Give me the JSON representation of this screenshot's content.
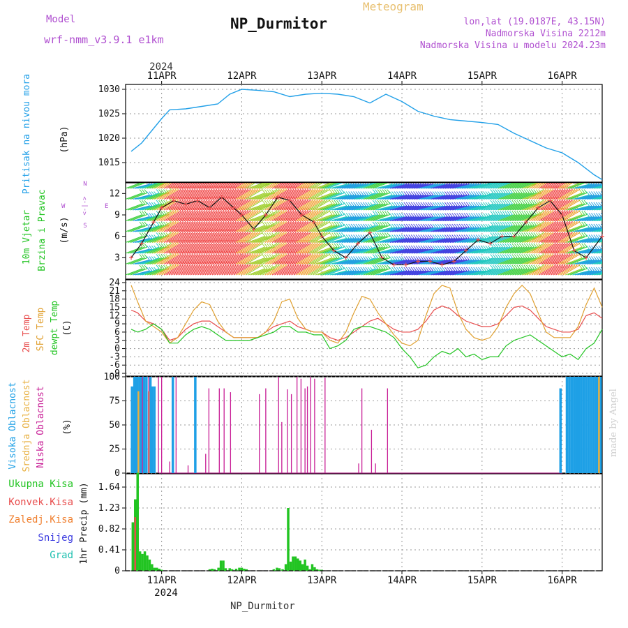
{
  "header": {
    "model_label": "Model",
    "model_name": "wrf-nmm_v3.9.1 e1km",
    "station_title": "NP_Durmitor",
    "meteogram_label": "Meteogram",
    "lonlat": "lon,lat (19.0187E, 43.15N)",
    "elevation": "Nadmorska Visina 2212m",
    "elevation_model": "Nadmorska Visina u modelu 2024.23m",
    "watermark": "made by Angel",
    "footer_station": "NP_Durmitor"
  },
  "x_axis": {
    "year": "2024",
    "date_labels": [
      "11APR",
      "12APR",
      "13APR",
      "14APR",
      "15APR",
      "16APR"
    ]
  },
  "panels": {
    "pressure": {
      "label": "Pritisak na nivou mora",
      "unit": "(hPa)",
      "ticks": [
        "1015",
        "1020",
        "1025",
        "1030"
      ]
    },
    "wind": {
      "label_1": "10m Vjetar",
      "label_2": "Brzina i Pravac",
      "unit": "(m/s)",
      "ticks": [
        "3",
        "6",
        "9",
        "12"
      ],
      "compass_n": "N",
      "compass_w": "W",
      "compass_e": "E",
      "compass_s": "S",
      "compass_arrow": "<-|->"
    },
    "temp": {
      "label_1": "2m Temp",
      "label_2": "SFC Temp",
      "label_3": "dewpt Temp",
      "unit": "(C)",
      "ticks": [
        "-9",
        "-6",
        "-3",
        "0",
        "3",
        "6",
        "9",
        "12",
        "15",
        "18",
        "21",
        "24"
      ]
    },
    "cloud": {
      "label_1": "Visoka Oblacnost",
      "label_2": "Srednja Oblacnost",
      "label_3": "Niska Oblacnost",
      "unit": "(%)",
      "ticks": [
        "0",
        "25",
        "50",
        "75",
        "100"
      ]
    },
    "precip": {
      "legend": [
        "Ukupna Kisa",
        "Konvek.Kisa",
        "Zaledj.Kisa",
        "Snijeg",
        "Grad"
      ],
      "unit": "1hr Precip (mm)",
      "ticks": [
        "0",
        "0.41",
        "0.82",
        "1.23",
        "1.64"
      ]
    }
  },
  "colors": {
    "pressure": "#22a0e8",
    "temp2m": "#e84c4c",
    "sfc": "#e0a030",
    "dewpt": "#22c422",
    "high_cloud": "#1ea0e6",
    "mid_cloud": "#e8b040",
    "low_cloud": "#c81e96",
    "precip_total": "#22c422",
    "precip_conv": "#e84c4c",
    "precip_frz": "#f08030",
    "snow": "#3c3ce0",
    "hail": "#20c0b0"
  },
  "chart_data": [
    {
      "type": "line",
      "title": "Pritisak na nivou mora",
      "ylabel": "(hPa)",
      "ylim": [
        1011,
        1031
      ],
      "x_days": [
        10.62,
        10.75,
        10.9,
        11.0,
        11.1,
        11.3,
        11.5,
        11.7,
        11.85,
        12.0,
        12.2,
        12.4,
        12.6,
        12.8,
        13.0,
        13.2,
        13.4,
        13.6,
        13.8,
        14.0,
        14.2,
        14.4,
        14.6,
        14.8,
        15.0,
        15.2,
        15.4,
        15.6,
        15.8,
        16.0,
        16.2,
        16.4,
        16.5
      ],
      "values": [
        1017.3,
        1019,
        1022,
        1024,
        1025.8,
        1026,
        1026.5,
        1027,
        1029,
        1030,
        1029.8,
        1029.5,
        1028.5,
        1029,
        1029.2,
        1029,
        1028.5,
        1027.2,
        1029,
        1027.5,
        1025.5,
        1024.5,
        1023.8,
        1023.5,
        1023.2,
        1022.8,
        1021,
        1019.5,
        1018,
        1017,
        1015,
        1012.5,
        1011.5
      ]
    },
    {
      "type": "line",
      "title": "10m Vjetar Brzina i Pravac",
      "ylabel": "(m/s)",
      "ylim": [
        0,
        13.5
      ],
      "x_days": [
        10.62,
        10.75,
        10.9,
        11.0,
        11.15,
        11.3,
        11.45,
        11.6,
        11.75,
        11.9,
        12.0,
        12.15,
        12.3,
        12.45,
        12.6,
        12.75,
        12.9,
        13.0,
        13.15,
        13.3,
        13.45,
        13.6,
        13.75,
        13.9,
        14.05,
        14.2,
        14.35,
        14.5,
        14.65,
        14.8,
        14.95,
        15.1,
        15.25,
        15.4,
        15.55,
        15.7,
        15.85,
        16.0,
        16.15,
        16.3,
        16.5
      ],
      "values": [
        3,
        5,
        8,
        10,
        11,
        10.5,
        11,
        10,
        11.5,
        10,
        9,
        7,
        9,
        11.5,
        11,
        9,
        8,
        6,
        4,
        3,
        5,
        6.5,
        3,
        2,
        2,
        2.5,
        2.5,
        2,
        2.5,
        4,
        5.5,
        5,
        6,
        6,
        8,
        10,
        11,
        9,
        4,
        3,
        6
      ],
      "compass": [
        "N",
        "W",
        "E",
        "S"
      ]
    },
    {
      "type": "line",
      "title": "2m Temp / SFC Temp / dewpt Temp",
      "ylabel": "(C)",
      "ylim": [
        -10,
        25
      ],
      "x_days": [
        10.62,
        10.7,
        10.8,
        10.9,
        11.0,
        11.1,
        11.2,
        11.3,
        11.4,
        11.5,
        11.6,
        11.7,
        11.8,
        11.9,
        12.0,
        12.1,
        12.2,
        12.3,
        12.4,
        12.5,
        12.6,
        12.7,
        12.8,
        12.9,
        13.0,
        13.1,
        13.2,
        13.3,
        13.4,
        13.5,
        13.6,
        13.7,
        13.8,
        13.9,
        14.0,
        14.1,
        14.2,
        14.3,
        14.4,
        14.5,
        14.6,
        14.7,
        14.8,
        14.9,
        15.0,
        15.1,
        15.2,
        15.3,
        15.4,
        15.5,
        15.6,
        15.7,
        15.8,
        15.9,
        16.0,
        16.1,
        16.2,
        16.3,
        16.4,
        16.5
      ],
      "series": [
        {
          "name": "2m Temp",
          "values": [
            14,
            13,
            10,
            9,
            7,
            3,
            4,
            7,
            9,
            10,
            10,
            8,
            6,
            4,
            4,
            4,
            4,
            6,
            8,
            9,
            10,
            8,
            7,
            6,
            6,
            4,
            3,
            4,
            6,
            8,
            10,
            11,
            9,
            7,
            6,
            6,
            7,
            10,
            14,
            15.5,
            14.5,
            12,
            10,
            9,
            8,
            8,
            9,
            12,
            15,
            15.5,
            14,
            11,
            8,
            7,
            6,
            6,
            7,
            12,
            13,
            11
          ]
        },
        {
          "name": "SFC Temp",
          "values": [
            23,
            17,
            10,
            8,
            6,
            2,
            4,
            9,
            14,
            17,
            16,
            10,
            6,
            4,
            4,
            4,
            4,
            6,
            10,
            17,
            18,
            11,
            7,
            6,
            6,
            3,
            2,
            6,
            13,
            19,
            18,
            13,
            9,
            5,
            2,
            1,
            3,
            12,
            20,
            23,
            22,
            13,
            7,
            4,
            3,
            4,
            8,
            15,
            20,
            23,
            20,
            13,
            6,
            4,
            4,
            4,
            8,
            16,
            22,
            15
          ]
        },
        {
          "name": "dewpt Temp",
          "values": [
            7,
            6,
            7,
            9,
            7,
            2,
            2,
            5,
            7,
            8,
            7,
            5,
            3,
            3,
            3,
            3,
            4,
            5,
            6,
            8,
            8,
            6,
            6,
            5,
            5,
            0,
            1,
            3,
            7,
            8,
            8,
            7,
            6,
            4,
            0,
            -3,
            -7,
            -6,
            -3,
            -1,
            -2,
            0,
            -3,
            -2,
            -4,
            -3,
            -3,
            1,
            3,
            4,
            5,
            3,
            1,
            -1,
            -3,
            -2,
            -4,
            0,
            2,
            7
          ]
        }
      ]
    },
    {
      "type": "bar",
      "title": "Oblacnost",
      "ylabel": "(%)",
      "ylim": [
        0,
        100
      ],
      "series": [
        {
          "name": "Visoka Oblacnost",
          "x_days": [
            10.63,
            10.66,
            10.68,
            10.7,
            10.73,
            10.75,
            10.78,
            10.81,
            10.86,
            10.88,
            10.91,
            11.14,
            11.42,
            15.98,
            16.06,
            16.09,
            16.12,
            16.15,
            16.18,
            16.21,
            16.24,
            16.27,
            16.3,
            16.33,
            16.36,
            16.39,
            16.42,
            16.45,
            16.48
          ],
          "values": [
            90,
            100,
            100,
            100,
            100,
            100,
            100,
            100,
            100,
            90,
            90,
            100,
            100,
            88,
            100,
            100,
            100,
            100,
            100,
            100,
            100,
            100,
            100,
            100,
            100,
            100,
            100,
            100,
            100
          ]
        },
        {
          "name": "Srednja Oblacnost",
          "x_days": [
            10.71,
            10.84,
            16.46
          ],
          "values": [
            85,
            85,
            100
          ]
        },
        {
          "name": "Niska Oblacnost",
          "x_days": [
            10.76,
            10.84,
            10.96,
            11.0,
            11.1,
            11.18,
            11.33,
            11.55,
            11.59,
            11.72,
            11.78,
            11.86,
            12.22,
            12.3,
            12.46,
            12.5,
            12.57,
            12.62,
            12.69,
            12.74,
            12.79,
            12.82,
            12.86,
            12.91,
            13.04,
            13.46,
            13.5,
            13.62,
            13.67,
            13.82
          ],
          "values": [
            100,
            100,
            100,
            100,
            12,
            100,
            8,
            20,
            88,
            88,
            88,
            84,
            82,
            88,
            100,
            53,
            87,
            82,
            100,
            98,
            88,
            90,
            100,
            98,
            99,
            10,
            88,
            45,
            10,
            88
          ]
        }
      ]
    },
    {
      "type": "bar",
      "title": "1hr Precip",
      "ylabel": "1hr Precip (mm)",
      "ylim": [
        0,
        1.9
      ],
      "series": [
        {
          "name": "Ukupna Kisa",
          "x_days": [
            10.64,
            10.67,
            10.7,
            10.73,
            10.76,
            10.79,
            10.82,
            10.85,
            10.88,
            10.91,
            10.94,
            10.97,
            11.0,
            11.6,
            11.63,
            11.66,
            11.71,
            11.74,
            11.77,
            11.8,
            11.85,
            11.88,
            11.93,
            11.97,
            12.0,
            12.03,
            12.06,
            12.4,
            12.44,
            12.47,
            12.51,
            12.55,
            12.58,
            12.61,
            12.64,
            12.67,
            12.7,
            12.73,
            12.76,
            12.79,
            12.82,
            12.85,
            12.88,
            12.91,
            12.94,
            12.97,
            13.0
          ],
          "values": [
            0.95,
            1.4,
            1.92,
            0.38,
            0.33,
            0.38,
            0.3,
            0.22,
            0.13,
            0.06,
            0.06,
            0.04,
            0.02,
            0.03,
            0.04,
            0.03,
            0.06,
            0.2,
            0.2,
            0.05,
            0.05,
            0.03,
            0.04,
            0.06,
            0.06,
            0.04,
            0.03,
            0.03,
            0.06,
            0.05,
            0.03,
            0.13,
            1.23,
            0.18,
            0.28,
            0.28,
            0.24,
            0.2,
            0.13,
            0.22,
            0.1,
            0.03,
            0.13,
            0.07,
            0.03,
            0.02,
            0.02
          ]
        },
        {
          "name": "Konvek.Kisa",
          "x_days": [
            10.67
          ],
          "values": [
            1.05
          ]
        }
      ]
    }
  ]
}
